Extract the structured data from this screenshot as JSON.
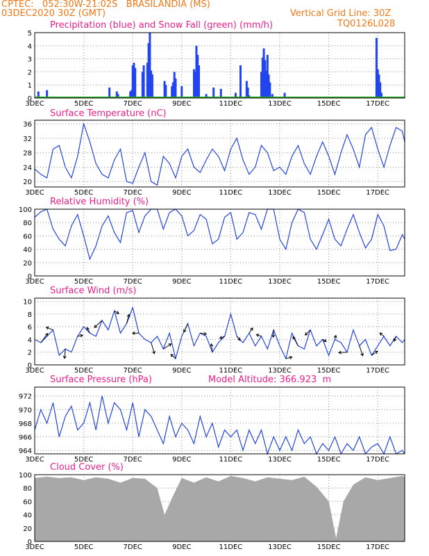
{
  "header": {
    "location": "CPTEC:   052:30W-21:02S   BRASILANDIA (MS)",
    "run": "03DEC2020 30Z (GMT)",
    "grid_note": "Vertical Grid Line: 30Z",
    "model_id": "TQ0126L028",
    "altitude": "Model Altitude: 366.923  m"
  },
  "colors": {
    "header": "#f07818",
    "title": "#e8208c",
    "line": "#2244dd",
    "precip": "#2244ee",
    "snow": "#22aa22",
    "cloud": "#a8a8a8"
  },
  "x_axis": {
    "ticks": [
      "3DEC",
      "5DEC",
      "7DEC",
      "9DEC",
      "11DEC",
      "13DEC",
      "15DEC",
      "17DEC"
    ],
    "start_day": 3,
    "end_day": 18.1
  },
  "chart_data": [
    {
      "type": "bar",
      "title": "Precipitation (blue) and Snow Fall (green) (mm/h)",
      "ylim": [
        0,
        5
      ],
      "yticks": [
        "0",
        "1",
        "2",
        "3",
        "4",
        "5"
      ],
      "series": [
        {
          "name": "Precipitation",
          "x_day": [
            3.15,
            3.5,
            6.05,
            6.35,
            6.4,
            6.9,
            6.95,
            7.0,
            7.05,
            7.1,
            7.4,
            7.45,
            7.6,
            7.65,
            7.7,
            7.75,
            7.8,
            8.3,
            8.35,
            8.6,
            8.65,
            8.7,
            8.75,
            9.0,
            9.5,
            9.55,
            9.6,
            9.65,
            9.7,
            10.0,
            10.3,
            10.6,
            11.2,
            11.4,
            11.65,
            11.7,
            11.75,
            12.25,
            12.3,
            12.35,
            12.4,
            12.45,
            12.5,
            12.55,
            12.6,
            12.7,
            13.2,
            16.95,
            17.0,
            17.05,
            17.1,
            17.15
          ],
          "values": [
            0.5,
            0.6,
            0.8,
            0.5,
            0.3,
            0.5,
            0.6,
            2.5,
            2.7,
            2.3,
            2.0,
            2.5,
            2.7,
            4.2,
            5.0,
            2.1,
            1.8,
            1.3,
            1.0,
            0.9,
            1.2,
            2.0,
            1.5,
            0.9,
            2.2,
            2.0,
            4.0,
            3.3,
            2.5,
            0.3,
            0.8,
            0.7,
            0.4,
            2.5,
            1.3,
            0.8,
            0.2,
            2.0,
            3.1,
            3.8,
            2.9,
            2.1,
            3.3,
            1.8,
            1.2,
            0.3,
            0.4,
            4.6,
            2.2,
            1.8,
            1.2,
            0.4
          ]
        },
        {
          "name": "Snow Fall",
          "x_day": [
            3.0,
            18.1
          ],
          "values": [
            0.05,
            0.05
          ]
        }
      ]
    },
    {
      "type": "line",
      "title": "Surface Temperature (nC)",
      "ylim": [
        18.5,
        37
      ],
      "yticks": [
        "20",
        "24",
        "28",
        "32",
        "36"
      ],
      "x_day": [
        3.0,
        3.25,
        3.5,
        3.75,
        4.0,
        4.25,
        4.5,
        4.75,
        5.0,
        5.25,
        5.5,
        5.75,
        6.0,
        6.25,
        6.5,
        6.75,
        7.0,
        7.25,
        7.5,
        7.75,
        8.0,
        8.25,
        8.5,
        8.75,
        9.0,
        9.25,
        9.5,
        9.75,
        10.0,
        10.25,
        10.5,
        10.75,
        11.0,
        11.25,
        11.5,
        11.75,
        12.0,
        12.25,
        12.5,
        12.75,
        13.0,
        13.25,
        13.5,
        13.75,
        14.0,
        14.25,
        14.5,
        14.75,
        15.0,
        15.25,
        15.5,
        15.75,
        16.0,
        16.25,
        16.5,
        16.75,
        17.0,
        17.25,
        17.5,
        17.75,
        18.0,
        18.1
      ],
      "values": [
        23.5,
        22,
        21,
        29,
        30,
        24,
        21,
        27,
        36,
        31,
        25,
        22,
        21,
        26,
        29,
        20,
        19.5,
        24,
        28,
        20,
        19,
        27,
        25,
        21,
        27,
        29,
        24,
        22.5,
        26,
        29,
        27,
        23,
        29,
        32,
        26,
        22,
        24,
        30,
        28,
        23,
        24,
        22,
        27,
        30,
        25,
        22,
        27,
        31,
        27,
        22,
        28,
        33,
        29,
        24,
        33,
        35,
        29,
        24,
        30,
        35,
        34,
        31
      ]
    },
    {
      "type": "line",
      "title": "Relative Humidity (%)",
      "ylim": [
        0,
        100
      ],
      "yticks": [
        "0",
        "20",
        "40",
        "60",
        "80",
        "100"
      ],
      "x_day": [
        3.0,
        3.25,
        3.5,
        3.75,
        4.0,
        4.25,
        4.5,
        4.75,
        5.0,
        5.25,
        5.5,
        5.75,
        6.0,
        6.25,
        6.5,
        6.75,
        7.0,
        7.25,
        7.5,
        7.75,
        8.0,
        8.25,
        8.5,
        8.75,
        9.0,
        9.25,
        9.5,
        9.75,
        10.0,
        10.25,
        10.5,
        10.75,
        11.0,
        11.25,
        11.5,
        11.75,
        12.0,
        12.25,
        12.5,
        12.75,
        13.0,
        13.25,
        13.5,
        13.75,
        14.0,
        14.25,
        14.5,
        14.75,
        15.0,
        15.25,
        15.5,
        15.75,
        16.0,
        16.25,
        16.5,
        16.75,
        17.0,
        17.25,
        17.5,
        17.75,
        18.0,
        18.1
      ],
      "values": [
        88,
        96,
        100,
        70,
        55,
        45,
        75,
        92,
        60,
        25,
        45,
        75,
        90,
        65,
        50,
        95,
        98,
        65,
        90,
        100,
        100,
        70,
        95,
        100,
        90,
        60,
        68,
        92,
        85,
        48,
        55,
        88,
        95,
        55,
        65,
        95,
        92,
        70,
        100,
        100,
        55,
        40,
        80,
        100,
        95,
        55,
        40,
        62,
        85,
        55,
        45,
        70,
        92,
        65,
        42,
        55,
        92,
        75,
        38,
        40,
        62,
        55
      ]
    },
    {
      "type": "line",
      "title": "Surface Wind (m/s)",
      "ylim": [
        0,
        10.5
      ],
      "yticks": [
        "0",
        "2",
        "4",
        "6",
        "8",
        "10"
      ],
      "x_day": [
        3.0,
        3.25,
        3.5,
        3.75,
        4.0,
        4.25,
        4.5,
        4.75,
        5.0,
        5.25,
        5.5,
        5.75,
        6.0,
        6.25,
        6.5,
        6.75,
        7.0,
        7.25,
        7.5,
        7.75,
        8.0,
        8.25,
        8.5,
        8.75,
        9.0,
        9.25,
        9.5,
        9.75,
        10.0,
        10.25,
        10.5,
        10.75,
        11.0,
        11.25,
        11.5,
        11.75,
        12.0,
        12.25,
        12.5,
        12.75,
        13.0,
        13.25,
        13.5,
        13.75,
        14.0,
        14.25,
        14.5,
        14.75,
        15.0,
        15.25,
        15.5,
        15.75,
        16.0,
        16.25,
        16.5,
        16.75,
        17.0,
        17.25,
        17.5,
        17.75,
        18.0,
        18.1
      ],
      "values": [
        4.0,
        3.5,
        4.5,
        5.5,
        1.5,
        2.5,
        2.0,
        4.5,
        6.0,
        5.0,
        4.5,
        7.0,
        5.5,
        8.5,
        5.0,
        6.5,
        9.0,
        5.0,
        4.0,
        3.5,
        4.5,
        2.5,
        5.0,
        1.0,
        4.5,
        6.5,
        3.0,
        5.0,
        4.5,
        2.0,
        3.5,
        4.5,
        8.0,
        4.5,
        3.5,
        5.0,
        3.0,
        4.5,
        2.5,
        5.5,
        3.0,
        1.0,
        5.0,
        3.0,
        2.5,
        5.5,
        3.0,
        4.0,
        1.5,
        4.0,
        3.5,
        2.0,
        5.5,
        3.0,
        4.0,
        1.5,
        3.0,
        4.5,
        3.0,
        4.5,
        3.5,
        4.0
      ],
      "vector_labels": "arrows"
    },
    {
      "type": "line",
      "title": "Surface Pressure (hPa)",
      "ylim": [
        963.5,
        973.3
      ],
      "yticks": [
        "964",
        "966",
        "968",
        "970",
        "972"
      ],
      "x_day": [
        3.0,
        3.25,
        3.5,
        3.75,
        4.0,
        4.25,
        4.5,
        4.75,
        5.0,
        5.25,
        5.5,
        5.75,
        6.0,
        6.25,
        6.5,
        6.75,
        7.0,
        7.25,
        7.5,
        7.75,
        8.0,
        8.25,
        8.5,
        8.75,
        9.0,
        9.25,
        9.5,
        9.75,
        10.0,
        10.25,
        10.5,
        10.75,
        11.0,
        11.25,
        11.5,
        11.75,
        12.0,
        12.25,
        12.5,
        12.75,
        13.0,
        13.25,
        13.5,
        13.75,
        14.0,
        14.25,
        14.5,
        14.75,
        15.0,
        15.25,
        15.5,
        15.75,
        16.0,
        16.25,
        16.5,
        16.75,
        17.0,
        17.25,
        17.5,
        17.75,
        18.0,
        18.1
      ],
      "values": [
        967,
        970,
        968,
        971,
        966,
        969,
        970.5,
        967,
        968,
        971,
        967,
        972,
        968,
        971,
        970,
        967,
        971,
        966,
        970,
        969,
        967,
        965,
        969,
        966,
        968,
        967,
        965,
        969,
        966,
        968,
        964.5,
        967,
        966,
        967,
        964,
        967,
        965,
        967,
        963.5,
        966,
        964,
        966,
        964,
        967,
        965,
        966,
        963.5,
        965,
        964,
        966,
        963.5,
        965,
        964,
        966,
        963.5,
        964.5,
        965,
        963.5,
        966,
        963.5,
        964,
        963.5
      ]
    },
    {
      "type": "area",
      "title": "Cloud Cover (%)",
      "ylim": [
        0,
        100
      ],
      "yticks": [
        "0",
        "20",
        "40",
        "60",
        "80",
        "100"
      ],
      "x_day": [
        3.0,
        3.5,
        4.0,
        4.5,
        5.0,
        5.5,
        6.0,
        6.5,
        7.0,
        7.5,
        8.0,
        8.3,
        8.6,
        9.0,
        9.5,
        10.0,
        10.5,
        11.0,
        11.5,
        12.0,
        12.5,
        13.0,
        13.5,
        14.0,
        14.5,
        15.0,
        15.3,
        15.6,
        16.0,
        16.5,
        17.0,
        17.5,
        18.0,
        18.1
      ],
      "values": [
        95,
        97,
        95,
        96,
        92,
        96,
        94,
        88,
        95,
        94,
        80,
        40,
        65,
        95,
        88,
        96,
        90,
        98,
        95,
        90,
        96,
        94,
        92,
        97,
        82,
        60,
        5,
        60,
        85,
        96,
        92,
        95,
        98,
        96
      ]
    }
  ]
}
